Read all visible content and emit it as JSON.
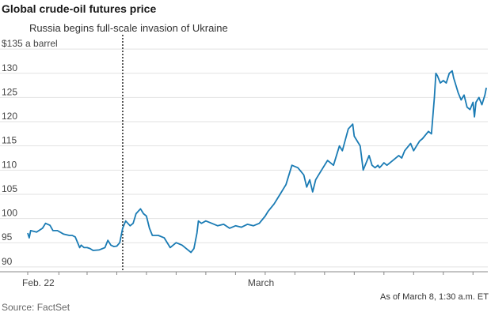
{
  "title": "Global crude-oil futures price",
  "source": "Source: FactSet",
  "chart_data": {
    "type": "line",
    "title": "Global crude-oil futures price",
    "ylabel": "$135 a barrel",
    "ylim": [
      89,
      136
    ],
    "y_ticks": [
      135,
      130,
      125,
      120,
      115,
      110,
      105,
      100,
      95,
      90
    ],
    "y_tick_labels": [
      "$135 a barrel",
      "130",
      "125",
      "120",
      "115",
      "110",
      "105",
      "100",
      "95",
      "90"
    ],
    "x_range": [
      0,
      15.5
    ],
    "x_tick_positions": [
      0,
      1.05,
      2,
      3,
      4,
      5,
      6,
      7,
      8,
      9,
      10,
      11,
      12,
      13,
      14,
      15
    ],
    "x_labels": [
      {
        "x": 0,
        "label": "Feb. 22"
      },
      {
        "x": 7.6,
        "label": "March"
      }
    ],
    "annotation": {
      "x": 3.2,
      "label": "Russia begins full-scale invasion of Ukraine"
    },
    "note": "As of March 8, 1:30 a.m. ET",
    "color": "#1a7bb4",
    "series": [
      {
        "x": [
          0,
          0.05,
          0.1,
          0.3,
          0.5,
          0.6,
          0.75,
          0.85,
          1.0,
          1.2,
          1.4,
          1.5,
          1.6,
          1.75,
          1.8,
          1.9,
          2.0,
          2.1,
          2.2,
          2.4,
          2.6,
          2.7,
          2.8,
          2.9,
          3.0,
          3.1,
          3.2,
          3.3,
          3.45,
          3.55,
          3.65,
          3.8,
          3.9,
          4.0,
          4.1,
          4.2,
          4.4,
          4.6,
          4.8,
          5.0,
          5.2,
          5.4,
          5.5,
          5.6,
          5.7,
          5.75,
          5.85,
          6.0,
          6.2,
          6.4,
          6.6,
          6.8,
          7.0,
          7.2,
          7.4,
          7.6,
          7.8,
          8.0,
          8.1,
          8.3,
          8.5,
          8.7,
          8.9,
          9.1,
          9.3,
          9.4,
          9.5,
          9.6,
          9.7,
          9.8,
          10.0,
          10.1,
          10.3,
          10.5,
          10.6,
          10.8,
          10.95,
          11.0,
          11.1,
          11.2,
          11.3,
          11.5,
          11.6,
          11.7,
          11.8,
          11.85,
          11.9,
          12.0,
          12.1,
          12.3,
          12.5,
          12.6,
          12.7,
          12.9,
          13.0,
          13.1,
          13.2,
          13.3,
          13.5,
          13.6,
          13.7,
          13.75,
          13.8,
          13.9,
          14.0,
          14.1,
          14.2,
          14.3,
          14.35,
          14.4,
          14.5,
          14.6,
          14.7,
          14.8,
          14.9,
          15.0,
          15.05,
          15.1,
          15.2,
          15.3,
          15.4,
          15.45
        ],
        "values": [
          97,
          96,
          97.5,
          97.2,
          98,
          99,
          98.6,
          97.5,
          97.5,
          96.8,
          96.5,
          96.5,
          96.2,
          94.0,
          94.5,
          94.0,
          94.0,
          93.8,
          93.4,
          93.5,
          94.0,
          95.5,
          94.5,
          94.2,
          94.3,
          95.0,
          98.0,
          99.5,
          98.5,
          99.0,
          101.0,
          102.0,
          101.0,
          100.5,
          98.0,
          96.5,
          96.5,
          96.0,
          94.0,
          95.0,
          94.5,
          93.5,
          93.0,
          93.8,
          97.0,
          99.5,
          99.0,
          99.5,
          99.0,
          98.5,
          98.8,
          98.0,
          98.5,
          98.2,
          98.8,
          98.5,
          99.0,
          100.5,
          101.5,
          103.0,
          105.0,
          107.0,
          111.0,
          110.5,
          109.0,
          106.5,
          108.0,
          105.5,
          108.0,
          109.0,
          111.0,
          112.0,
          111.0,
          115.0,
          114.0,
          118.5,
          119.5,
          117.0,
          116.0,
          115.0,
          110.0,
          113.0,
          111.0,
          110.5,
          111.0,
          110.5,
          110.8,
          111.5,
          111.0,
          112.0,
          113.0,
          112.5,
          114.0,
          115.5,
          114.0,
          115.0,
          116.0,
          116.5,
          118.0,
          117.5,
          125.0,
          130.0,
          129.5,
          128.0,
          128.5,
          128.0,
          130.0,
          130.5,
          129.0,
          128.0,
          126.0,
          124.5,
          125.5,
          123.0,
          122.5,
          124.0,
          121.0,
          124.0,
          125.0,
          123.5,
          125.5,
          127.0
        ]
      }
    ]
  }
}
